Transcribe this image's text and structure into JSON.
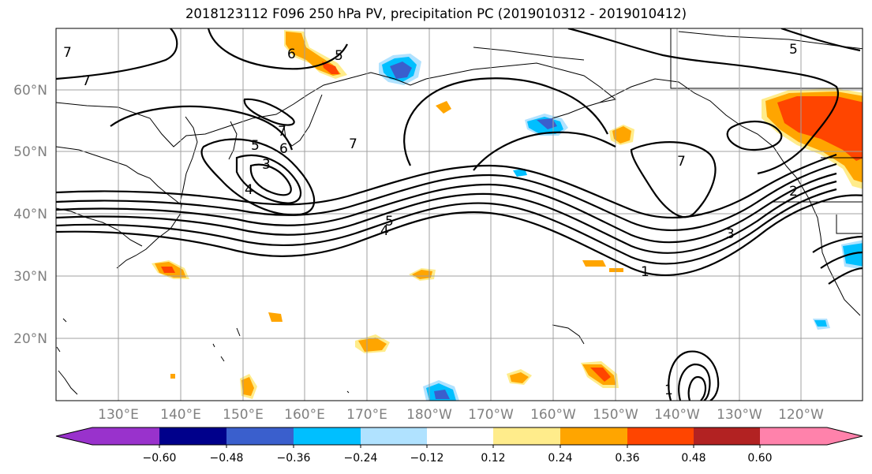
{
  "title": "2018123112 F096 250 hPa PV, precipitation PC (2019010312 - 2019010412)",
  "latitude_labels": [
    "60°N",
    "50°N",
    "40°N",
    "30°N",
    "20°N"
  ],
  "longitude_labels": [
    "130°E",
    "140°E",
    "150°E",
    "160°E",
    "170°E",
    "180°W",
    "170°W",
    "160°W",
    "150°W",
    "140°W",
    "130°W",
    "120°W"
  ],
  "contour_labels": [
    "7",
    "6",
    "5",
    "5",
    "7",
    "6",
    "7",
    "7",
    "5",
    "4",
    "3",
    "7",
    "5",
    "4",
    "7",
    "3",
    "2",
    "1",
    "1"
  ],
  "colorbar": {
    "ticks": [
      "−0.60",
      "−0.48",
      "−0.36",
      "−0.24",
      "−0.12",
      "0.12",
      "0.24",
      "0.36",
      "0.48",
      "0.60"
    ],
    "colors": [
      "#9932CC",
      "#00008B",
      "#3A5FCD",
      "#00BFFF",
      "#B0E2FF",
      "#FFFFFF",
      "#FFEC8B",
      "#FFA500",
      "#FF4500",
      "#B22222",
      "#FF82AB"
    ]
  }
}
